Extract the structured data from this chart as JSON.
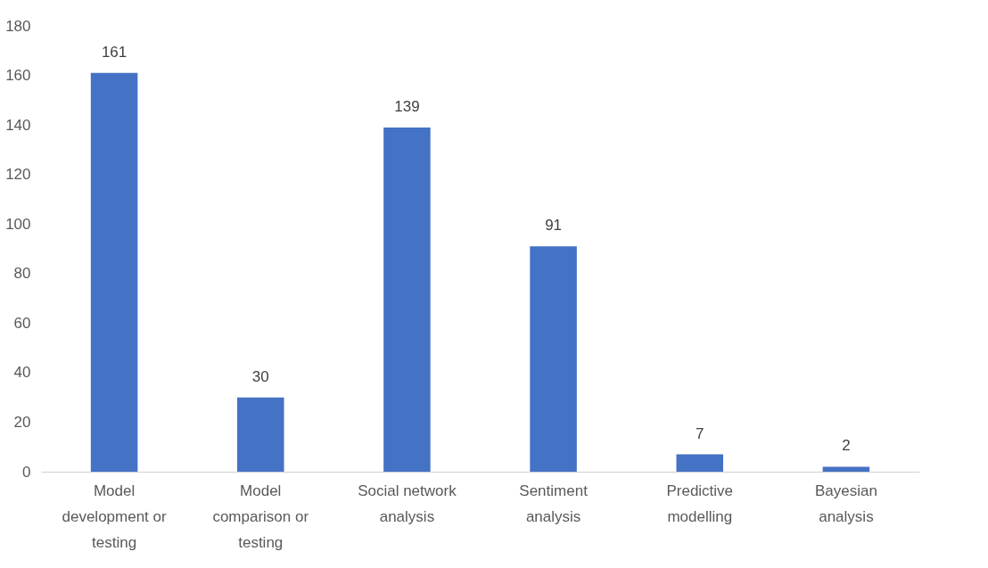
{
  "chart_data": {
    "type": "bar",
    "categories": [
      "Model development or testing",
      "Model comparison or testing",
      "Social network analysis",
      "Sentiment analysis",
      "Predictive modelling",
      "Bayesian analysis"
    ],
    "values": [
      161,
      30,
      139,
      91,
      7,
      2
    ],
    "color": "#4472c4",
    "ylim": [
      0,
      180
    ],
    "yticks": [
      0,
      20,
      40,
      60,
      80,
      100,
      120,
      140,
      160,
      180
    ],
    "grid": false,
    "data_labels": true
  }
}
